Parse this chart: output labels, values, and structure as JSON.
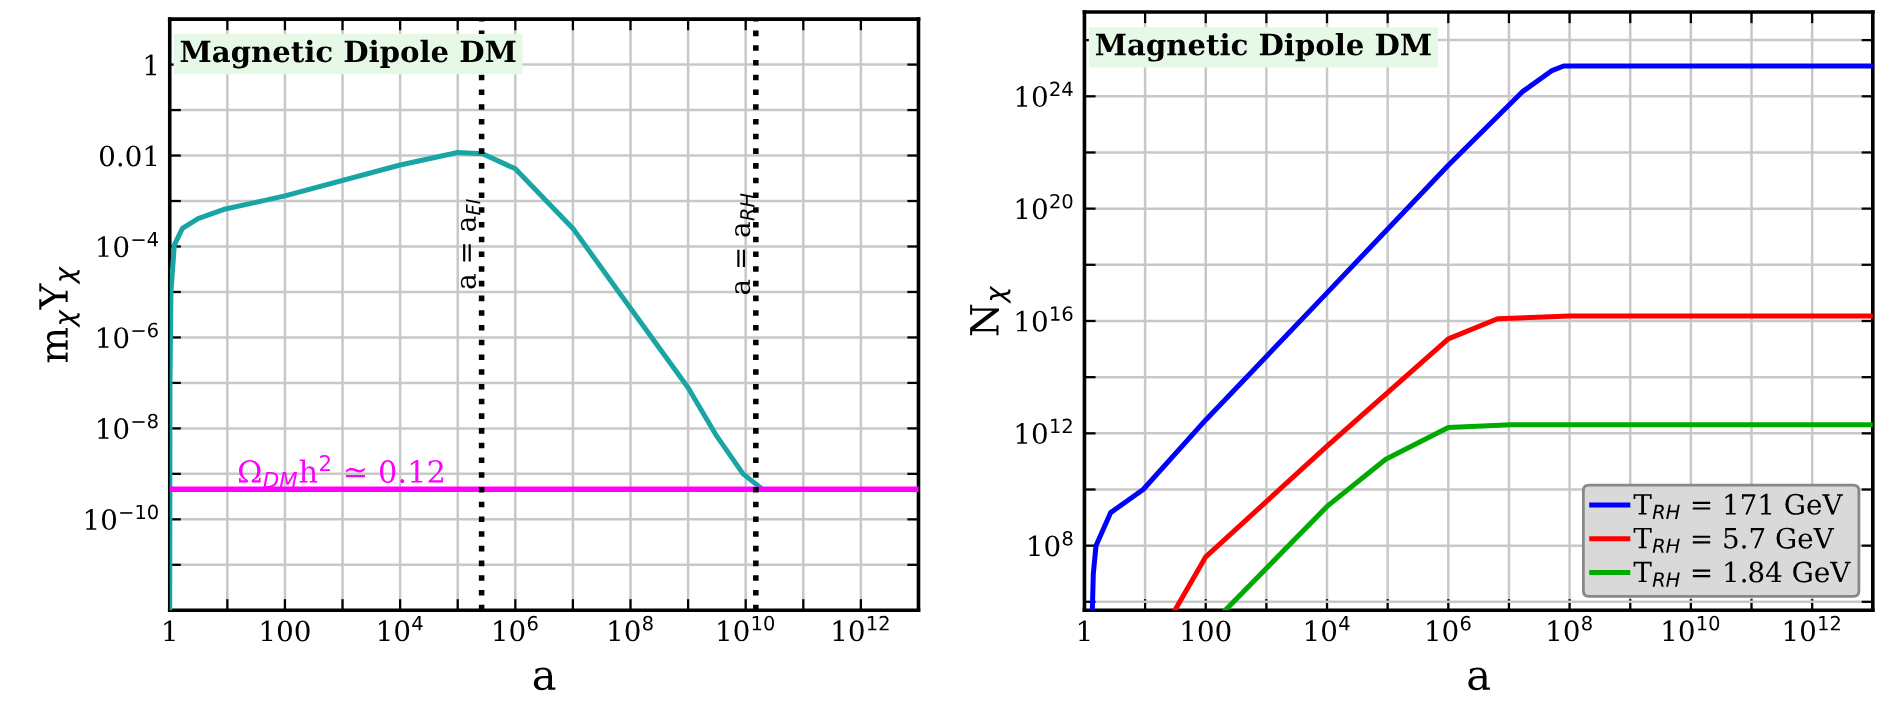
{
  "chart_data": [
    {
      "type": "line",
      "xlabel": "a",
      "ylabel": "m$_{χ}$Y$_{χ}$",
      "log": "xy",
      "grid": true,
      "legend": false,
      "line_style": "solid",
      "marker": "none",
      "annotations": [
        "Magnetic Dipole DM"
      ],
      "xlim": [
        1,
        10000000000000.0
      ],
      "ylim": [
        1e-12,
        10
      ],
      "xticks": [
        1,
        {
          "value": 10,
          "label": null
        },
        100,
        {
          "value": 1000,
          "label": null
        },
        {
          "value": 10000,
          "label": "10$^{4}$"
        },
        {
          "value": 100000,
          "label": null
        },
        {
          "value": 1000000,
          "label": "10$^{6}$"
        },
        {
          "value": 10000000,
          "label": null
        },
        {
          "value": 100000000,
          "label": "10$^{8}$"
        },
        {
          "value": 1000000000,
          "label": null
        },
        {
          "value": 10000000000,
          "label": "10$^{10}$"
        },
        {
          "value": 100000000000,
          "label": null
        },
        {
          "value": 1000000000000,
          "label": "10$^{12}$"
        }
      ],
      "yticks": [
        {
          "value": 10,
          "label": null
        },
        1,
        {
          "value": 0.1,
          "label": null
        },
        0.01,
        {
          "value": 0.001,
          "label": null
        },
        {
          "value": 0.0001,
          "label": "10$^{−4}$"
        },
        {
          "value": 1e-05,
          "label": null
        },
        {
          "value": 1e-06,
          "label": "10$^{−6}$"
        },
        {
          "value": 1e-07,
          "label": null
        },
        {
          "value": 1e-08,
          "label": "10$^{−8}$"
        },
        {
          "value": 1e-09,
          "label": null
        },
        {
          "value": 1e-10,
          "label": "10$^{−10}$"
        },
        {
          "value": 1e-11,
          "label": null
        }
      ],
      "series": [
        {
          "color": "#1aa5a5",
          "x": [
            1.0,
            1.01,
            1.05,
            1.2,
            1.66,
            3.1,
            8.5,
            100,
            10000,
            100000,
            270000,
            1000000,
            10000000,
            100000000,
            1000000000,
            3000000000,
            9000000000,
            18000000000
          ],
          "values": [
            1e-12,
            1e-07,
            1e-05,
            0.000107,
            0.00025,
            0.00041,
            0.00065,
            0.0013,
            0.0062,
            0.0117,
            0.011,
            0.0051,
            0.00025,
            4.4e-06,
            7.8e-08,
            7.4e-09,
            1e-09,
            5e-10
          ]
        }
      ],
      "ref_lines": [
        {
          "axis": "y",
          "value": 4.6e-10,
          "label": "Ω$_{DM}$h$^{2}$ ≃ 0.12",
          "color": "#ff00ff",
          "line_style": "solid"
        },
        {
          "axis": "x",
          "value": 260000,
          "label": "a = a$_{FI}$",
          "color": "#000000",
          "line_style": "dotted"
        },
        {
          "axis": "x",
          "value": 15000000000,
          "label": "a = a$_{RH}$",
          "color": "#000000",
          "line_style": "dotted"
        }
      ]
    },
    {
      "type": "line",
      "xlabel": "a",
      "ylabel": "N$_{χ}$",
      "log": "xy",
      "grid": true,
      "legend": "bottom right",
      "line_style": "solid",
      "marker": "none",
      "annotations": [
        "Magnetic Dipole DM"
      ],
      "xlim": [
        1,
        10000000000000.0
      ],
      "ylim": [
        500000.0,
        1e+27
      ],
      "xticks": [
        1,
        {
          "value": 10,
          "label": null
        },
        100,
        {
          "value": 1000,
          "label": null
        },
        {
          "value": 10000,
          "label": "10$^{4}$"
        },
        {
          "value": 100000,
          "label": null
        },
        {
          "value": 1000000,
          "label": "10$^{6}$"
        },
        {
          "value": 10000000,
          "label": null
        },
        {
          "value": 100000000,
          "label": "10$^{8}$"
        },
        {
          "value": 1000000000,
          "label": null
        },
        {
          "value": 10000000000,
          "label": "10$^{10}$"
        },
        {
          "value": 100000000000,
          "label": null
        },
        {
          "value": 1000000000000,
          "label": "10$^{12}$"
        }
      ],
      "yticks": [
        {
          "value": 1000000.0,
          "label": null
        },
        {
          "value": 100000000.0,
          "label": "10$^{8}$"
        },
        {
          "value": 10000000000.0,
          "label": null
        },
        {
          "value": 1000000000000.0,
          "label": "10$^{12}$"
        },
        {
          "value": 100000000000000.0,
          "label": null
        },
        {
          "value": 1e+16,
          "label": "10$^{16}$"
        },
        {
          "value": 1e+18,
          "label": null
        },
        {
          "value": 1e+20,
          "label": "10$^{20}$"
        },
        {
          "value": 1e+22,
          "label": null
        },
        {
          "value": 1e+24,
          "label": "10$^{24}$"
        },
        {
          "value": 1e+26,
          "label": null
        }
      ],
      "series": [
        {
          "name": "T$_{RH}$ = 171 GeV",
          "color": "#0000ff",
          "x": [
            1.35,
            1.4,
            1.55,
            2.7,
            9.3,
            100,
            10000,
            1000000,
            17000000,
            50000000,
            80000000,
            10000000000000.0
          ],
          "values": [
            500000.0,
            10000000.0,
            100000000.0,
            1500000000.0,
            10000000000.0,
            3000000000000.0,
            1e+17,
            3.5e+21,
            1.5e+24,
            8e+24,
            1.2e+25,
            1.2e+25
          ]
        },
        {
          "name": "T$_{RH}$ = 5.7 GeV",
          "color": "#ff0000",
          "x": [
            31,
            100,
            10000,
            1000000,
            6500000,
            100000000,
            10000000000000.0
          ],
          "values": [
            500000.0,
            40000000.0,
            350000000000.0,
            2300000000000000.0,
            1.2e+16,
            1.5e+16,
            1.5e+16
          ]
        },
        {
          "name": "T$_{RH}$ = 1.84 GeV",
          "color": "#00aa00",
          "x": [
            210,
            10000,
            93000,
            1000000,
            10700000,
            10000000000000.0
          ],
          "values": [
            500000.0,
            2500000000.0,
            120000000000.0,
            1600000000000.0,
            2000000000000.0,
            2000000000000.0
          ]
        }
      ]
    }
  ]
}
